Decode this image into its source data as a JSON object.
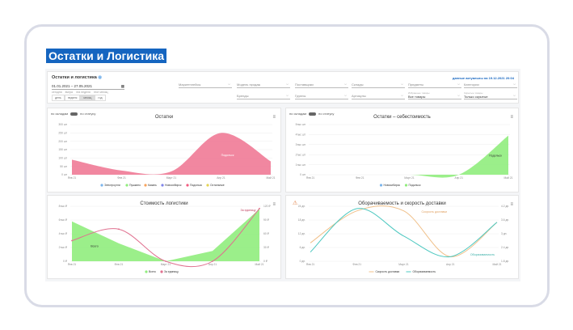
{
  "page_title": "Остатки и Логистика",
  "header": {
    "title": "Остатки и логистика",
    "info_icon": "eye-icon",
    "date_range": "01.01.2021 – 27.05.2021",
    "calendar_icon": "calendar-icon",
    "presets": [
      "сегодня",
      "вчера",
      "эта неделя",
      "этот месяц"
    ],
    "periods": [
      "день",
      "неделя",
      "месяц",
      "год"
    ],
    "selected_period": "месяц",
    "actual": "данные актуальны на 19.12.2021 20:04",
    "filters_row1": [
      "Маркетплейсы",
      "Модель продаж",
      "Поставщики",
      "Склады",
      "Предметы",
      "Категории"
    ],
    "filters_row2": [
      {
        "label": "Бренды"
      },
      {
        "label": "Группы"
      },
      {
        "label": "Артикулы"
      },
      {
        "sub": "Избранные товары",
        "value": "Все товары"
      },
      {
        "sub": "Скрытые товары",
        "value": "Только скрытые"
      }
    ]
  },
  "toggle": {
    "left": "по складам",
    "right": "по статусу"
  },
  "chart_data": [
    {
      "type": "area",
      "title": "Остатки",
      "categories": [
        "Янв 21",
        "Фев 21",
        "Март 21",
        "Апр 21",
        "Май 21"
      ],
      "ylim": [
        0,
        300
      ],
      "yticks": [
        "0 шт",
        "50 шт",
        "100 шт",
        "150 шт",
        "200 шт",
        "250 шт",
        "300 шт"
      ],
      "series": [
        {
          "name": "Подольск",
          "values": [
            90,
            25,
            20,
            250,
            80
          ],
          "color": "#f07a96"
        }
      ],
      "data_label": "Подольск",
      "legend": [
        {
          "name": "Электроугли",
          "color": "#7cb5ec"
        },
        {
          "name": "Пушкино",
          "color": "#90ed7d"
        },
        {
          "name": "Казань",
          "color": "#f7a35c"
        },
        {
          "name": "Новосибирск",
          "color": "#8085e9"
        },
        {
          "name": "Подольск",
          "color": "#f15c80"
        },
        {
          "name": "Остальные",
          "color": "#e4d354"
        }
      ]
    },
    {
      "type": "area",
      "title": "Остатки – себестоимость",
      "categories": [
        "Янв 21",
        "Фев 21",
        "Март 21",
        "Апр 21",
        "Май 21"
      ],
      "ylim": [
        0,
        5000
      ],
      "yticks": [
        "0 шт",
        "1тыс шт",
        "2тыс шт",
        "3тыс шт",
        "4тыс шт",
        "5тыс шт"
      ],
      "series": [
        {
          "name": "Подольск",
          "values": [
            0,
            0,
            0,
            0,
            3900
          ],
          "color": "#90ed7d"
        }
      ],
      "data_label": "Подольск",
      "legend": [
        {
          "name": "Новосибирск",
          "color": "#7cb5ec"
        },
        {
          "name": "Подольск",
          "color": "#90ed7d"
        }
      ]
    },
    {
      "type": "area+line",
      "title": "Стоимость логистики",
      "categories": [
        "Янв 21",
        "Фев 21",
        "Март 21",
        "Апр 21",
        "Май 21"
      ],
      "ylim": [
        0,
        8000
      ],
      "yticks": [
        "0 ₽",
        "2тыс ₽",
        "4тыс ₽",
        "6тыс ₽",
        "8тыс ₽"
      ],
      "y2lim": [
        0,
        120
      ],
      "y2ticks": [
        "0 ₽",
        "30 ₽",
        "60 ₽",
        "90 ₽",
        "120 ₽"
      ],
      "series": [
        {
          "name": "Всего",
          "values": [
            5800,
            2600,
            0,
            1500,
            7600
          ],
          "color": "#90ed7d",
          "kind": "area"
        },
        {
          "name": "За единицу",
          "values": [
            45,
            70,
            0,
            0,
            115
          ],
          "color": "#e0708f",
          "kind": "line",
          "axis": 2
        }
      ],
      "legend": [
        {
          "name": "Всего",
          "color": "#90ed7d"
        },
        {
          "name": "За единицу",
          "color": "#e0708f"
        }
      ]
    },
    {
      "type": "line",
      "title": "Оборачиваемость и скорость доставки",
      "warning_icon": "warning-icon",
      "categories": [
        "Янв 21",
        "Фев 21",
        "Март 21",
        "Апр 21",
        "Май 21"
      ],
      "ylim": [
        0,
        24
      ],
      "yticks": [
        "0 дн.",
        "6 дн.",
        "12 дн.",
        "18 дн.",
        "24 дн."
      ],
      "y2lim": [
        1.8,
        4.2
      ],
      "y2ticks": [
        "1.8 дн.",
        "2.4 дн.",
        "3 дн.",
        "3.6 дн.",
        "4.2 дн."
      ],
      "series": [
        {
          "name": "Скорость доставки",
          "values": [
            8,
            22,
            22,
            2,
            17
          ],
          "color": "#f0c08a",
          "kind": "line"
        },
        {
          "name": "Оборачиваемость",
          "values": [
            2.2,
            4.1,
            2.9,
            2.0,
            3.5
          ],
          "color": "#4dc8c0",
          "kind": "line",
          "axis": 2
        }
      ],
      "legend": [
        {
          "name": "Скорость доставки",
          "color": "#f0c08a"
        },
        {
          "name": "Оборачиваемость",
          "color": "#4dc8c0"
        }
      ]
    }
  ]
}
